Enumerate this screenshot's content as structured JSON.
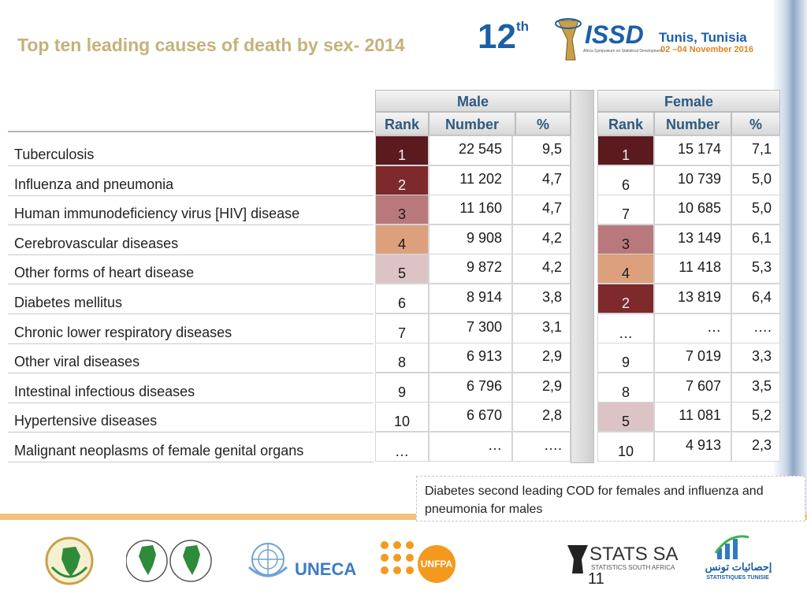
{
  "title": "Top ten leading causes of death by sex- 2014",
  "header": {
    "edition": "12",
    "edition_suffix": "th",
    "event_logo": "ISSD",
    "event_subtitle": "Africa Symposium on Statistical Development",
    "venue": "Tunis, Tunisia",
    "dates": "02 –04 November 2016"
  },
  "table": {
    "male_header": "Male",
    "female_header": "Female",
    "columns": [
      "Rank",
      "Number",
      "%"
    ],
    "rows": [
      {
        "cause": "Tuberculosis",
        "m_rank": "1",
        "m_num": "22 545",
        "m_pct": "9,5",
        "f_rank": "1",
        "f_num": "15 174",
        "f_pct": "7,1",
        "m_color": "#5a1a1e",
        "f_color": "#5a1a1e"
      },
      {
        "cause": "Influenza and pneumonia",
        "m_rank": "2",
        "m_num": "11 202",
        "m_pct": "4,7",
        "f_rank": "6",
        "f_num": "10 739",
        "f_pct": "5,0",
        "m_color": "#7e2a2c",
        "f_color": "#ffffff"
      },
      {
        "cause": "Human immunodeficiency virus [HIV] disease",
        "m_rank": "3",
        "m_num": "11 160",
        "m_pct": "4,7",
        "f_rank": "7",
        "f_num": "10 685",
        "f_pct": "5,0",
        "m_color": "#b9797c",
        "f_color": "#ffffff"
      },
      {
        "cause": "Cerebrovascular diseases",
        "m_rank": "4",
        "m_num": "9 908",
        "m_pct": "4,2",
        "f_rank": "3",
        "f_num": "13 149",
        "f_pct": "6,1",
        "m_color": "#dca17c",
        "f_color": "#b9797c"
      },
      {
        "cause": "Other forms of heart disease",
        "m_rank": "5",
        "m_num": "9 872",
        "m_pct": "4,2",
        "f_rank": "4",
        "f_num": "11 418",
        "f_pct": "5,3",
        "m_color": "#dcc4c6",
        "f_color": "#dca17c"
      },
      {
        "cause": "Diabetes mellitus",
        "m_rank": "6",
        "m_num": "8 914",
        "m_pct": "3,8",
        "f_rank": "2",
        "f_num": "13 819",
        "f_pct": "6,4",
        "m_color": "#ffffff",
        "f_color": "#7e2a2c"
      },
      {
        "cause": "Chronic lower respiratory diseases",
        "m_rank": "7",
        "m_num": "7 300",
        "m_pct": "3,1",
        "f_rank": "…",
        "f_num": "…",
        "f_pct": "….",
        "m_color": "#ffffff",
        "f_color": "#ffffff"
      },
      {
        "cause": "Other viral diseases",
        "m_rank": "8",
        "m_num": "6 913",
        "m_pct": "2,9",
        "f_rank": "9",
        "f_num": "7 019",
        "f_pct": "3,3",
        "m_color": "#ffffff",
        "f_color": "#ffffff"
      },
      {
        "cause": "Intestinal infectious diseases",
        "m_rank": "9",
        "m_num": "6 796",
        "m_pct": "2,9",
        "f_rank": "8",
        "f_num": "7 607",
        "f_pct": "3,5",
        "m_color": "#ffffff",
        "f_color": "#ffffff"
      },
      {
        "cause": "Hypertensive diseases",
        "m_rank": "10",
        "m_num": "6 670",
        "m_pct": "2,8",
        "f_rank": "5",
        "f_num": "11 081",
        "f_pct": "5,2",
        "m_color": "#ffffff",
        "f_color": "#dcc4c6"
      },
      {
        "cause": "Malignant neoplasms of female genital organs",
        "m_rank": "…",
        "m_num": "…",
        "m_pct": "….",
        "f_rank": "10",
        "f_num": "4 913",
        "f_pct": "2,3",
        "m_color": "#ffffff",
        "f_color": "#ffffff"
      }
    ]
  },
  "note": "Diabetes second leading COD for females and influenza and pneumonia for males",
  "footer": {
    "uneca": "UNECA",
    "unfpa": "UNFPA",
    "stats_sa": "STATS SA",
    "stats_sa_sub": "STATISTICS SOUTH AFRICA",
    "stats_tn_ar": "إحصائيات تونس",
    "stats_tn": "STATISTIQUES TUNISIE",
    "page_number": "11"
  }
}
